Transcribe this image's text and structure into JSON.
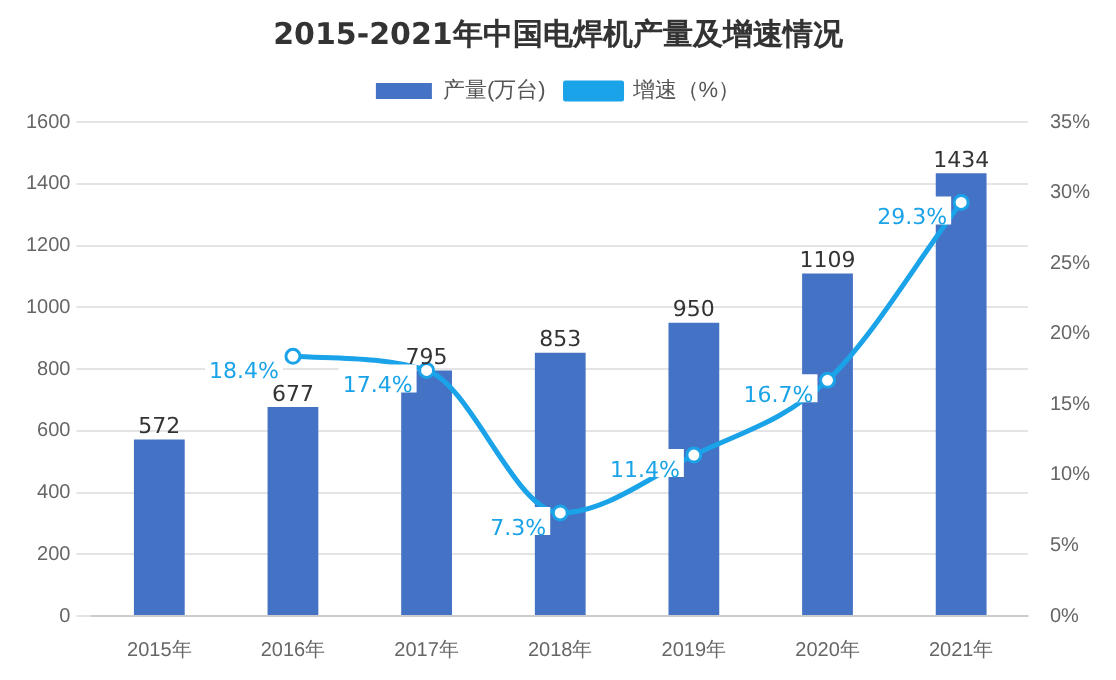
{
  "chart_data": {
    "type": "bar",
    "title": "2015-2021年中国电焊机产量及增速情况",
    "categories": [
      "2015年",
      "2016年",
      "2017年",
      "2018年",
      "2019年",
      "2020年",
      "2021年"
    ],
    "series": [
      {
        "name": "产量(万台)",
        "color": "#4472c4",
        "values": [
          572,
          677,
          795,
          853,
          950,
          1109,
          1434
        ],
        "value_labels": [
          "572",
          "677",
          "795",
          "853",
          "950",
          "1109",
          "1434"
        ]
      },
      {
        "name": "增速（%）",
        "type": "line",
        "axis": "y2",
        "color": "#1aa3e8",
        "values": [
          null,
          18.4,
          17.4,
          7.3,
          11.4,
          16.7,
          29.3
        ],
        "value_labels": [
          null,
          "18.4%",
          "17.4%",
          "7.3%",
          "11.4%",
          "16.7%",
          "29.3%"
        ]
      }
    ],
    "ylim": [
      0,
      1600
    ],
    "yticks": [
      0,
      200,
      400,
      600,
      800,
      1000,
      1200,
      1400,
      1600
    ],
    "y2lim": [
      0,
      35
    ],
    "y2ticks": [
      {
        "value": 0,
        "label": "0%"
      },
      {
        "value": 5,
        "label": "5%"
      },
      {
        "value": 10,
        "label": "10%"
      },
      {
        "value": 15,
        "label": "15%"
      },
      {
        "value": 20,
        "label": "20%"
      },
      {
        "value": 25,
        "label": "25%"
      },
      {
        "value": 30,
        "label": "30%"
      },
      {
        "value": 35,
        "label": "35%"
      }
    ],
    "grid": "y",
    "legend": "top",
    "marker": "circle",
    "line_style": "solid"
  }
}
